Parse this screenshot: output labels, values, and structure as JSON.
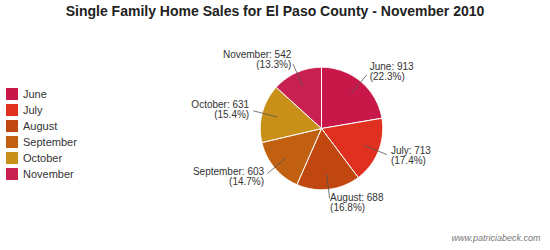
{
  "chart_data": {
    "type": "pie",
    "title": "Single Family Home Sales for El Paso County - November 2010",
    "categories": [
      "June",
      "July",
      "August",
      "September",
      "October",
      "November"
    ],
    "values": [
      913,
      713,
      688,
      603,
      631,
      542
    ],
    "value_labels": [
      "June: 913\n(22.3%)",
      "July: 713\n(17.4%)",
      "August: 688\n(16.8%)",
      "September: 603\n(14.7%)",
      "October: 631\n(15.4%)",
      "November: 542\n(13.3%)"
    ],
    "colors": [
      "#c8184a",
      "#e03020",
      "#c04810",
      "#c06010",
      "#c89018",
      "#c82050"
    ],
    "data_labels": true,
    "legend": "left",
    "caption": "www.patriciabeck.com"
  }
}
